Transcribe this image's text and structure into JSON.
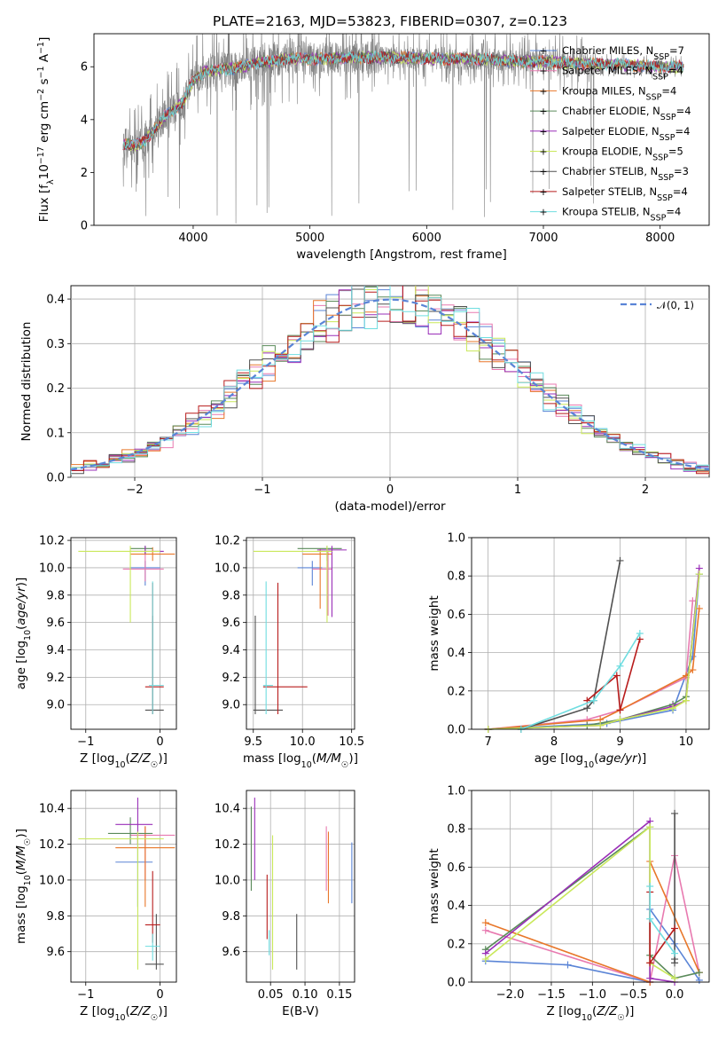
{
  "figure": {
    "title": "PLATE=2163, MJD=53823, FIBERID=0307, z=0.123",
    "colors": [
      "#5a84d6",
      "#e87ab0",
      "#e8772a",
      "#5a8a5a",
      "#9a2fb8",
      "#c9e85a",
      "#505050",
      "#b81c1c",
      "#6fdde0"
    ],
    "legend": [
      "Chabrier MILES, N",
      "Salpeter MILES, N",
      "Kroupa MILES, N",
      "Chabrier ELODIE, N",
      "Salpeter ELODIE, N",
      "Kroupa ELODIE, N",
      "Chabrier STELIB, N",
      "Salpeter STELIB, N",
      "Kroupa STELIB, N"
    ],
    "legend_sub": "SSP",
    "legend_n": [
      "=7",
      "=4",
      "=4",
      "=4",
      "=4",
      "=5",
      "=3",
      "=4",
      "=4"
    ],
    "normal_label": "𝒩(0, 1)"
  },
  "chart_data": [
    {
      "id": "spectrum",
      "type": "line",
      "title": "PLATE=2163, MJD=53823, FIBERID=0307, z=0.123",
      "xlabel": "wavelength [Angstrom, rest frame]",
      "ylabel": "Flux [f  10   erg cm   s   A  ]",
      "xlim": [
        3150,
        8420
      ],
      "ylim": [
        0,
        7.25
      ],
      "xticks": [
        "4000",
        "5000",
        "6000",
        "7000",
        "8000"
      ],
      "yticks": [
        "0",
        "2",
        "4",
        "6"
      ],
      "data_x_range": [
        3400,
        8200
      ],
      "continuum_x": [
        3400,
        3500,
        3550,
        3600,
        3650,
        3700,
        3750,
        3800,
        3850,
        3900,
        3950,
        4000,
        4100,
        4200,
        4300,
        4400,
        4500,
        4600,
        4700,
        4800,
        4900,
        5000,
        5200,
        5400,
        5600,
        5800,
        6000,
        6200,
        6400,
        6600,
        6800,
        7000,
        7200,
        7400,
        7600,
        7800,
        8000,
        8200
      ],
      "continuum_y": [
        3.1,
        3.0,
        3.1,
        3.3,
        3.5,
        3.8,
        4.1,
        4.3,
        4.4,
        4.6,
        5.0,
        5.5,
        5.8,
        5.9,
        5.9,
        6.0,
        6.1,
        6.2,
        6.2,
        6.3,
        6.3,
        6.3,
        6.3,
        6.35,
        6.35,
        6.35,
        6.3,
        6.3,
        6.3,
        6.25,
        6.2,
        6.2,
        6.15,
        6.1,
        6.1,
        6.05,
        6.0,
        6.0
      ],
      "grid": false
    },
    {
      "id": "residuals",
      "type": "histogram",
      "xlabel": "(data-model)/error",
      "ylabel": "Normed distribution",
      "xlim": [
        -2.5,
        2.5
      ],
      "ylim": [
        0,
        0.43
      ],
      "xticks": [
        "−2",
        "−1",
        "0",
        "1",
        "2"
      ],
      "yticks": [
        "0.0",
        "0.1",
        "0.2",
        "0.3",
        "0.4"
      ],
      "bin_width": 0.1,
      "legend": [
        "𝒩(0, 1)"
      ],
      "legend_position": "top-right",
      "grid": true
    },
    {
      "id": "age_vs_Z",
      "type": "scatter",
      "xlabel": "Z [log10(Z/Z☉)]",
      "ylabel": "age  [log10(age/yr)]",
      "xlim": [
        -1.2,
        0.22
      ],
      "ylim": [
        8.82,
        10.22
      ],
      "xticks": [
        "−1",
        "0"
      ],
      "yticks": [
        "9.0",
        "9.2",
        "9.4",
        "9.6",
        "9.8",
        "10.0",
        "10.2"
      ],
      "series": [
        {
          "x": -0.2,
          "y": 10.0,
          "xlo": -0.4,
          "xhi": 0.0,
          "ylo": 9.87,
          "yhi": 10.05
        },
        {
          "x": -0.2,
          "y": 9.99,
          "xlo": -0.5,
          "xhi": 0.05,
          "ylo": 9.9,
          "yhi": 10.1
        },
        {
          "x": -0.1,
          "y": 10.1,
          "xlo": -0.4,
          "xhi": 0.2,
          "ylo": 10.05,
          "yhi": 10.15
        },
        {
          "x": -0.2,
          "y": 10.14,
          "xlo": -0.4,
          "xhi": -0.1,
          "ylo": 10.1,
          "yhi": 10.16
        },
        {
          "x": -0.2,
          "y": 10.12,
          "xlo": -0.4,
          "xhi": 0.05,
          "ylo": 10.1,
          "yhi": 10.16
        },
        {
          "x": -0.4,
          "y": 10.12,
          "xlo": -1.1,
          "xhi": 0.0,
          "ylo": 9.6,
          "yhi": 10.16
        },
        {
          "x": -0.1,
          "y": 8.96,
          "xlo": -0.2,
          "xhi": 0.05,
          "ylo": 8.93,
          "yhi": 9.65
        },
        {
          "x": -0.1,
          "y": 9.13,
          "xlo": -0.2,
          "xhi": 0.05,
          "ylo": 8.93,
          "yhi": 9.89
        },
        {
          "x": -0.1,
          "y": 9.14,
          "xlo": -0.15,
          "xhi": 0.05,
          "ylo": 8.93,
          "yhi": 9.9
        }
      ],
      "grid": true
    },
    {
      "id": "age_vs_mass",
      "type": "scatter",
      "xlabel": "mass [log10(M/M☉)]",
      "ylabel": "",
      "xlim": [
        9.43,
        10.53
      ],
      "ylim": [
        8.82,
        10.22
      ],
      "xticks": [
        "9.5",
        "10.0",
        "10.5"
      ],
      "yticks": [
        "9.0",
        "9.2",
        "9.4",
        "9.6",
        "9.8",
        "10.0",
        "10.2"
      ],
      "series": [
        {
          "x": 10.1,
          "y": 10.0,
          "xlo": 9.95,
          "xhi": 10.2,
          "ylo": 9.87,
          "yhi": 10.05
        },
        {
          "x": 10.26,
          "y": 9.99,
          "xlo": 10.1,
          "xhi": 10.3,
          "ylo": 9.65,
          "yhi": 10.12
        },
        {
          "x": 10.18,
          "y": 10.1,
          "xlo": 10.0,
          "xhi": 10.3,
          "ylo": 9.7,
          "yhi": 10.14
        },
        {
          "x": 10.25,
          "y": 10.14,
          "xlo": 9.95,
          "xhi": 10.4,
          "ylo": 10.05,
          "yhi": 10.16
        },
        {
          "x": 10.3,
          "y": 10.13,
          "xlo": 10.15,
          "xhi": 10.45,
          "ylo": 9.64,
          "yhi": 10.16
        },
        {
          "x": 10.25,
          "y": 10.12,
          "xlo": 9.5,
          "xhi": 10.3,
          "ylo": 9.6,
          "yhi": 10.16
        },
        {
          "x": 9.52,
          "y": 8.96,
          "xlo": 9.5,
          "xhi": 9.8,
          "ylo": 8.93,
          "yhi": 9.65
        },
        {
          "x": 9.75,
          "y": 9.13,
          "xlo": 9.6,
          "xhi": 10.05,
          "ylo": 8.93,
          "yhi": 9.89
        },
        {
          "x": 9.63,
          "y": 9.14,
          "xlo": 9.6,
          "xhi": 9.7,
          "ylo": 8.93,
          "yhi": 9.9
        }
      ],
      "grid": true
    },
    {
      "id": "mass_weight_vs_age",
      "type": "line",
      "xlabel": "age  [log10(age/yr)]",
      "ylabel": "mass weight",
      "xlim": [
        6.75,
        10.35
      ],
      "ylim": [
        0,
        1.0
      ],
      "xticks": [
        "7",
        "8",
        "9",
        "10"
      ],
      "yticks": [
        "0.0",
        "0.2",
        "0.4",
        "0.6",
        "0.8",
        "1.0"
      ],
      "series": [
        {
          "x": [
            7.0,
            8.8,
            9.8,
            10.1,
            10.2
          ],
          "y": [
            0.0,
            0.03,
            0.1,
            0.38,
            0.81
          ]
        },
        {
          "x": [
            7.0,
            8.5,
            9.0,
            10.0,
            10.1
          ],
          "y": [
            0.0,
            0.05,
            0.1,
            0.27,
            0.67
          ]
        },
        {
          "x": [
            7.0,
            8.7,
            9.0,
            10.0,
            10.1,
            10.2
          ],
          "y": [
            0.0,
            0.05,
            0.1,
            0.28,
            0.31,
            0.63
          ]
        },
        {
          "x": [
            7.0,
            8.5,
            9.0,
            9.8,
            10.0,
            10.2
          ],
          "y": [
            0.0,
            0.02,
            0.05,
            0.13,
            0.17,
            0.81
          ]
        },
        {
          "x": [
            7.0,
            8.7,
            9.0,
            9.8,
            10.0,
            10.2
          ],
          "y": [
            0.0,
            0.02,
            0.05,
            0.12,
            0.15,
            0.84
          ]
        },
        {
          "x": [
            7.0,
            8.7,
            9.0,
            9.8,
            10.0,
            10.2
          ],
          "y": [
            0.0,
            0.02,
            0.05,
            0.11,
            0.15,
            0.81
          ]
        },
        {
          "x": [
            7.5,
            8.5,
            8.6,
            9.0
          ],
          "y": [
            0.0,
            0.11,
            0.15,
            0.88
          ]
        },
        {
          "x": [
            8.5,
            8.95,
            9.0,
            9.3
          ],
          "y": [
            0.15,
            0.28,
            0.1,
            0.47
          ]
        },
        {
          "x": [
            7.5,
            8.6,
            9.0,
            9.3
          ],
          "y": [
            0.0,
            0.15,
            0.33,
            0.5
          ]
        }
      ],
      "grid": true
    },
    {
      "id": "mass_vs_Z",
      "type": "scatter",
      "xlabel": "Z [log10(Z/Z☉)]",
      "ylabel": "mass [log10(M/M☉)]",
      "xlim": [
        -1.2,
        0.22
      ],
      "ylim": [
        9.43,
        10.5
      ],
      "xticks": [
        "−1",
        "0"
      ],
      "yticks": [
        "9.6",
        "9.8",
        "10.0",
        "10.2",
        "10.4"
      ],
      "series": [
        {
          "x": -0.3,
          "y": 10.1,
          "xlo": -0.6,
          "xhi": -0.1,
          "ylo": 9.85,
          "yhi": 10.25
        },
        {
          "x": -0.2,
          "y": 10.25,
          "xlo": -0.4,
          "xhi": 0.2,
          "ylo": 10.0,
          "yhi": 10.3
        },
        {
          "x": -0.2,
          "y": 10.18,
          "xlo": -0.6,
          "xhi": 0.2,
          "ylo": 9.85,
          "yhi": 10.3
        },
        {
          "x": -0.4,
          "y": 10.26,
          "xlo": -0.7,
          "xhi": -0.1,
          "ylo": 10.2,
          "yhi": 10.35
        },
        {
          "x": -0.3,
          "y": 10.31,
          "xlo": -0.6,
          "xhi": -0.1,
          "ylo": 10.2,
          "yhi": 10.46
        },
        {
          "x": -0.3,
          "y": 10.23,
          "xlo": -1.1,
          "xhi": 0.05,
          "ylo": 9.5,
          "yhi": 10.27
        },
        {
          "x": -0.05,
          "y": 9.53,
          "xlo": -0.2,
          "xhi": 0.05,
          "ylo": 9.5,
          "yhi": 9.81
        },
        {
          "x": -0.1,
          "y": 9.75,
          "xlo": -0.2,
          "xhi": 0.0,
          "ylo": 9.65,
          "yhi": 10.05
        },
        {
          "x": -0.1,
          "y": 9.63,
          "xlo": -0.2,
          "xhi": 0.0,
          "ylo": 9.55,
          "yhi": 9.7
        }
      ],
      "grid": true
    },
    {
      "id": "mass_vs_ebv",
      "type": "scatter",
      "xlabel": "E(B-V)",
      "ylabel": "",
      "xlim": [
        0.015,
        0.172
      ],
      "ylim": [
        9.43,
        10.5
      ],
      "xticks": [
        "0.05",
        "0.10",
        "0.15"
      ],
      "yticks": [
        "9.6",
        "9.8",
        "10.0",
        "10.2",
        "10.4"
      ],
      "series": [
        {
          "x": 0.168,
          "y": 10.1,
          "ylo": 9.87,
          "yhi": 10.21
        },
        {
          "x": 0.131,
          "y": 10.16,
          "ylo": 9.94,
          "yhi": 10.3
        },
        {
          "x": 0.134,
          "y": 10.13,
          "ylo": 9.87,
          "yhi": 10.27
        },
        {
          "x": 0.022,
          "y": 10.26,
          "ylo": 9.94,
          "yhi": 10.41
        },
        {
          "x": 0.027,
          "y": 10.3,
          "ylo": 10.0,
          "yhi": 10.46
        },
        {
          "x": 0.053,
          "y": 10.0,
          "ylo": 9.5,
          "yhi": 10.25
        },
        {
          "x": 0.088,
          "y": 9.6,
          "ylo": 9.5,
          "yhi": 9.81
        },
        {
          "x": 0.045,
          "y": 9.78,
          "ylo": 9.67,
          "yhi": 10.03
        },
        {
          "x": 0.048,
          "y": 9.63,
          "ylo": 9.58,
          "yhi": 9.72
        }
      ],
      "grid": true
    },
    {
      "id": "mass_weight_vs_Z",
      "type": "line",
      "xlabel": "Z [log10(Z/Z☉)]",
      "ylabel": "mass weight",
      "xlim": [
        -2.47,
        0.42
      ],
      "ylim": [
        0,
        1.0
      ],
      "xticks": [
        "−2.0",
        "−1.5",
        "−1.0",
        "−0.5",
        "0.0"
      ],
      "yticks": [
        "0.0",
        "0.2",
        "0.4",
        "0.6",
        "0.8",
        "1.0"
      ],
      "series": [
        {
          "x": [
            -2.3,
            -1.3,
            -0.3,
            -0.3,
            0.0,
            0.3
          ],
          "y": [
            0.11,
            0.09,
            0.0,
            0.38,
            0.2,
            0.01
          ]
        },
        {
          "x": [
            -2.3,
            -0.3,
            -0.3,
            0.0,
            0.3
          ],
          "y": [
            0.27,
            0.0,
            0.0,
            0.66,
            0.05
          ]
        },
        {
          "x": [
            -2.3,
            -0.3,
            -0.3,
            0.3
          ],
          "y": [
            0.31,
            0.0,
            0.63,
            0.05
          ]
        },
        {
          "x": [
            -2.3,
            -0.3,
            -0.3,
            0.0,
            0.3
          ],
          "y": [
            0.17,
            0.81,
            0.14,
            0.02,
            0.05
          ]
        },
        {
          "x": [
            -2.3,
            -0.3,
            -0.3,
            0.0
          ],
          "y": [
            0.15,
            0.84,
            0.02,
            0.0
          ]
        },
        {
          "x": [
            -2.3,
            -0.3,
            -0.3,
            0.0
          ],
          "y": [
            0.12,
            0.81,
            0.1,
            0.02
          ]
        },
        {
          "x": [
            0.0,
            0.0,
            0.0
          ],
          "y": [
            0.12,
            0.88,
            0.1
          ]
        },
        {
          "x": [
            -0.3,
            -0.3,
            0.0
          ],
          "y": [
            0.47,
            0.1,
            0.28
          ]
        },
        {
          "x": [
            -0.3,
            -0.3,
            0.0
          ],
          "y": [
            0.5,
            0.33,
            0.15
          ]
        }
      ],
      "grid": true
    }
  ]
}
